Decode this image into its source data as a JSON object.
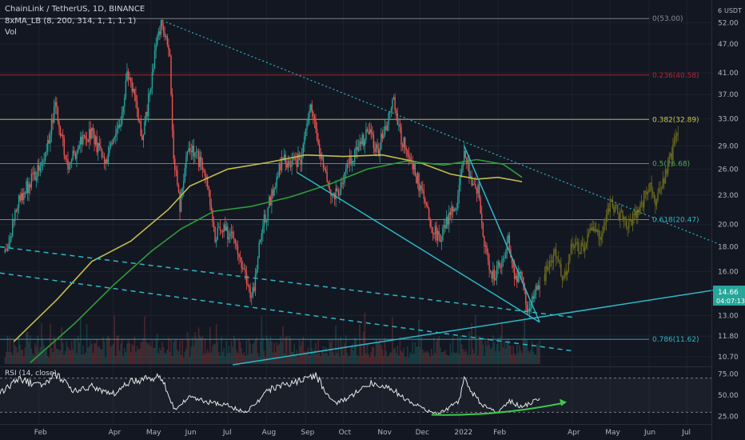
{
  "header": {
    "title": "ChainLink / TetherUS, 1D, BINANCE",
    "indicator": "8xMA_LB (8, 200, 314, 1, 1, 1, 1)",
    "volume": "Vol",
    "rsi": "RSI (14, close)",
    "currency": "USDT",
    "currency_prefix": "6"
  },
  "price_badge": {
    "value": "14.66",
    "countdown": "04:07:13",
    "color": "#26a69a"
  },
  "colors": {
    "up": "#26a69a",
    "down": "#ef5350",
    "projection": "#6b6b1e",
    "cyan": "#2bb8c6",
    "fib_red": "#b22833",
    "fib_yellow": "#c9c94a",
    "fib_green": "#4caf50",
    "fib_teal": "#2bb8c6",
    "ma_yellow": "#c4bd4a",
    "ma_green": "#2e9d3a",
    "rsi_line": "#e8e8e8",
    "rsi_arrow": "#3ec84a"
  },
  "chart_data": {
    "type": "candlestick",
    "y_scale": "log",
    "ylim": [
      10.3,
      57
    ],
    "y_ticks": [
      "52.00",
      "47.00",
      "41.00",
      "37.00",
      "33.00",
      "29.00",
      "26.00",
      "23.00",
      "20.00",
      "18.00",
      "16.00",
      "13.00",
      "11.80",
      "10.70"
    ],
    "y_tick_values": [
      52,
      47,
      41,
      37,
      33,
      29,
      26,
      23,
      20,
      18,
      16,
      13,
      11.8,
      10.7
    ],
    "x_ticks": [
      {
        "label": "Feb",
        "date": "2021-02-01"
      },
      {
        "label": "Apr",
        "date": "2021-04-01"
      },
      {
        "label": "May",
        "date": "2021-05-01"
      },
      {
        "label": "Jun",
        "date": "2021-06-01"
      },
      {
        "label": "Jul",
        "date": "2021-07-01"
      },
      {
        "label": "Aug",
        "date": "2021-08-01"
      },
      {
        "label": "Sep",
        "date": "2021-09-01"
      },
      {
        "label": "Oct",
        "date": "2021-10-01"
      },
      {
        "label": "Nov",
        "date": "2021-11-01"
      },
      {
        "label": "Dec",
        "date": "2021-12-01"
      },
      {
        "label": "2022",
        "date": "2022-01-01"
      },
      {
        "label": "Feb",
        "date": "2022-02-01"
      },
      {
        "label": "Apr",
        "date": "2022-04-01"
      },
      {
        "label": "May",
        "date": "2022-05-01"
      },
      {
        "label": "Jun",
        "date": "2022-06-01"
      },
      {
        "label": "Jul",
        "date": "2022-07-01"
      }
    ],
    "fib_levels": [
      {
        "label": "0(53.00)",
        "value": 53.0,
        "color": "#8a8d96"
      },
      {
        "label": "0.236(40.58)",
        "value": 40.58,
        "color": "#b22833"
      },
      {
        "label": "0.382(32.89)",
        "value": 32.89,
        "color": "#c9c94a"
      },
      {
        "label": "0.5(26.68)",
        "value": 26.68,
        "color": "#4caf50"
      },
      {
        "label": "0.618(20.47)",
        "value": 20.47,
        "color": "#2bb8c6"
      },
      {
        "label": "0.786(11.62)",
        "value": 11.62,
        "color": "#2bb8c6"
      }
    ],
    "price_path": [
      [
        "2021-01-05",
        17.5
      ],
      [
        "2021-01-15",
        22.0
      ],
      [
        "2021-01-25",
        24.5
      ],
      [
        "2021-02-05",
        27.0
      ],
      [
        "2021-02-14",
        35.0
      ],
      [
        "2021-02-24",
        26.0
      ],
      [
        "2021-03-05",
        29.5
      ],
      [
        "2021-03-15",
        31.0
      ],
      [
        "2021-03-25",
        26.5
      ],
      [
        "2021-04-05",
        31.0
      ],
      [
        "2021-04-12",
        40.0
      ],
      [
        "2021-04-18",
        38.0
      ],
      [
        "2021-04-24",
        29.0
      ],
      [
        "2021-05-04",
        45.0
      ],
      [
        "2021-05-10",
        52.5
      ],
      [
        "2021-05-16",
        43.0
      ],
      [
        "2021-05-19",
        28.0
      ],
      [
        "2021-05-24",
        22.0
      ],
      [
        "2021-05-30",
        29.0
      ],
      [
        "2021-06-06",
        28.0
      ],
      [
        "2021-06-14",
        24.5
      ],
      [
        "2021-06-21",
        19.0
      ],
      [
        "2021-06-28",
        19.5
      ],
      [
        "2021-07-06",
        19.0
      ],
      [
        "2021-07-13",
        16.5
      ],
      [
        "2021-07-20",
        13.8
      ],
      [
        "2021-07-28",
        19.5
      ],
      [
        "2021-08-05",
        23.0
      ],
      [
        "2021-08-14",
        27.5
      ],
      [
        "2021-08-21",
        26.5
      ],
      [
        "2021-08-29",
        27.5
      ],
      [
        "2021-09-05",
        35.0
      ],
      [
        "2021-09-12",
        28.0
      ],
      [
        "2021-09-21",
        23.0
      ],
      [
        "2021-09-28",
        23.5
      ],
      [
        "2021-10-06",
        27.0
      ],
      [
        "2021-10-14",
        29.0
      ],
      [
        "2021-10-21",
        31.0
      ],
      [
        "2021-10-28",
        28.0
      ],
      [
        "2021-11-05",
        33.0
      ],
      [
        "2021-11-10",
        36.5
      ],
      [
        "2021-11-16",
        30.0
      ],
      [
        "2021-11-24",
        27.0
      ],
      [
        "2021-12-03",
        23.0
      ],
      [
        "2021-12-10",
        20.0
      ],
      [
        "2021-12-16",
        18.5
      ],
      [
        "2021-12-24",
        21.0
      ],
      [
        "2021-12-31",
        22.5
      ],
      [
        "2022-01-05",
        28.5
      ],
      [
        "2022-01-10",
        25.0
      ],
      [
        "2022-01-16",
        23.5
      ],
      [
        "2022-01-21",
        18.0
      ],
      [
        "2022-01-27",
        15.5
      ],
      [
        "2022-02-02",
        16.5
      ],
      [
        "2022-02-09",
        18.5
      ],
      [
        "2022-02-14",
        15.8
      ],
      [
        "2022-02-20",
        15.5
      ],
      [
        "2022-02-24",
        13.2
      ],
      [
        "2022-03-02",
        14.6
      ],
      [
        "2022-03-06",
        14.66
      ]
    ],
    "projection_path": [
      [
        "2022-03-10",
        15.8
      ],
      [
        "2022-03-18",
        17.5
      ],
      [
        "2022-03-25",
        15.5
      ],
      [
        "2022-04-02",
        18.5
      ],
      [
        "2022-04-10",
        17.5
      ],
      [
        "2022-04-18",
        20.0
      ],
      [
        "2022-04-24",
        19.0
      ],
      [
        "2022-05-01",
        22.5
      ],
      [
        "2022-05-08",
        21.0
      ],
      [
        "2022-05-16",
        20.0
      ],
      [
        "2022-05-24",
        21.5
      ],
      [
        "2022-06-01",
        24.0
      ],
      [
        "2022-06-06",
        22.0
      ],
      [
        "2022-06-12",
        24.5
      ],
      [
        "2022-06-18",
        27.5
      ],
      [
        "2022-06-24",
        31.0
      ]
    ],
    "ma_fast": [
      [
        "2021-01-12",
        11.5
      ],
      [
        "2021-02-15",
        14.0
      ],
      [
        "2021-03-15",
        16.8
      ],
      [
        "2021-04-15",
        18.5
      ],
      [
        "2021-05-15",
        21.5
      ],
      [
        "2021-06-01",
        24.0
      ],
      [
        "2021-07-01",
        26.0
      ],
      [
        "2021-08-01",
        26.8
      ],
      [
        "2021-09-01",
        27.8
      ],
      [
        "2021-10-01",
        27.6
      ],
      [
        "2021-11-01",
        27.8
      ],
      [
        "2021-12-01",
        26.8
      ],
      [
        "2021-12-25",
        25.4
      ],
      [
        "2022-01-15",
        24.8
      ],
      [
        "2022-02-01",
        25.0
      ],
      [
        "2022-02-20",
        24.5
      ]
    ],
    "ma_slow": [
      [
        "2021-01-25",
        10.4
      ],
      [
        "2021-03-01",
        12.5
      ],
      [
        "2021-04-01",
        15.0
      ],
      [
        "2021-05-01",
        17.6
      ],
      [
        "2021-05-25",
        19.6
      ],
      [
        "2021-06-20",
        21.3
      ],
      [
        "2021-07-20",
        21.8
      ],
      [
        "2021-08-20",
        22.8
      ],
      [
        "2021-09-20",
        24.2
      ],
      [
        "2021-10-20",
        26.0
      ],
      [
        "2021-11-20",
        27.0
      ],
      [
        "2021-12-20",
        26.5
      ],
      [
        "2022-01-15",
        27.2
      ],
      [
        "2022-02-05",
        26.6
      ],
      [
        "2022-02-20",
        25.0
      ]
    ],
    "trendlines": [
      {
        "kind": "dotted",
        "from": [
          "2021-05-10",
          52.5
        ],
        "to": [
          "2022-07-25",
          18.3
        ]
      },
      {
        "kind": "solid",
        "from": [
          "2021-08-25",
          25.6
        ],
        "to": [
          "2022-03-06",
          12.6
        ]
      },
      {
        "kind": "solid",
        "from": [
          "2022-01-05",
          29.0
        ],
        "to": [
          "2022-03-06",
          12.6
        ]
      },
      {
        "kind": "solid",
        "from": [
          "2021-07-05",
          10.3
        ],
        "to": [
          "2022-07-25",
          14.7
        ]
      },
      {
        "kind": "dashed",
        "from": [
          "2021-01-01",
          18.0
        ],
        "to": [
          "2022-04-01",
          12.9
        ]
      },
      {
        "kind": "dashed",
        "from": [
          "2021-01-01",
          15.9
        ],
        "to": [
          "2022-04-01",
          11.0
        ]
      }
    ],
    "rsi": {
      "ylim": [
        20,
        80
      ],
      "y_ticks": [
        "75.00",
        "50.00",
        "25.00"
      ],
      "y_tick_values": [
        75,
        50,
        25
      ],
      "levels": [
        70,
        30
      ],
      "path": [
        [
          "2021-01-01",
          52
        ],
        [
          "2021-01-15",
          68
        ],
        [
          "2021-02-01",
          62
        ],
        [
          "2021-02-15",
          74
        ],
        [
          "2021-03-01",
          55
        ],
        [
          "2021-03-15",
          60
        ],
        [
          "2021-04-01",
          52
        ],
        [
          "2021-04-15",
          66
        ],
        [
          "2021-05-01",
          70
        ],
        [
          "2021-05-10",
          72
        ],
        [
          "2021-05-20",
          34
        ],
        [
          "2021-06-01",
          48
        ],
        [
          "2021-06-15",
          42
        ],
        [
          "2021-07-01",
          38
        ],
        [
          "2021-07-15",
          30
        ],
        [
          "2021-08-01",
          56
        ],
        [
          "2021-08-15",
          62
        ],
        [
          "2021-09-01",
          70
        ],
        [
          "2021-09-10",
          72
        ],
        [
          "2021-09-25",
          40
        ],
        [
          "2021-10-10",
          52
        ],
        [
          "2021-10-20",
          64
        ],
        [
          "2021-11-05",
          62
        ],
        [
          "2021-11-20",
          45
        ],
        [
          "2021-12-05",
          33
        ],
        [
          "2021-12-15",
          28
        ],
        [
          "2022-01-01",
          44
        ],
        [
          "2022-01-05",
          70
        ],
        [
          "2022-01-20",
          38
        ],
        [
          "2022-02-01",
          30
        ],
        [
          "2022-02-10",
          44
        ],
        [
          "2022-02-20",
          36
        ],
        [
          "2022-03-01",
          42
        ],
        [
          "2022-03-06",
          45
        ]
      ],
      "arrow": {
        "from": [
          "2021-12-10",
          27
        ],
        "to": [
          "2022-03-25",
          41
        ]
      }
    }
  }
}
